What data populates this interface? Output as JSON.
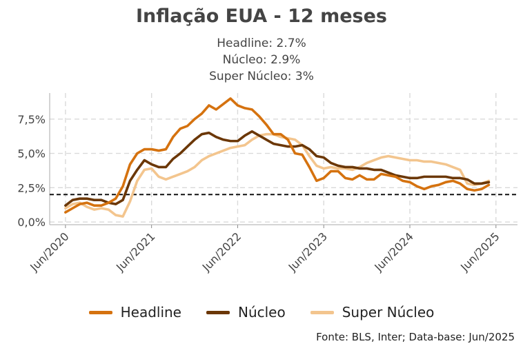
{
  "chart_data": {
    "type": "line",
    "title": "Inflação EUA - 12 meses",
    "subtitle_lines": [
      "Headline: 2.7%",
      "Núcleo: 2.9%",
      "Super Núcleo: 3%"
    ],
    "y_ticks": [
      "0,0%",
      "2,5%",
      "5,0%",
      "7,5%"
    ],
    "y_tick_values": [
      0,
      2.5,
      5,
      7.5
    ],
    "x_ticks": [
      "Jun/2020",
      "Jun/2021",
      "Jun/2022",
      "Jun/2023",
      "Jun/2024",
      "Jun/2025"
    ],
    "x_tick_months": [
      0,
      12,
      24,
      36,
      48,
      60
    ],
    "ylim": [
      -0.2,
      9.4
    ],
    "xlim": [
      -2.2,
      63
    ],
    "reference_line": 2.0,
    "grid": true,
    "legend_position": "bottom",
    "series": [
      {
        "name": "Headline",
        "color": "#d5720f",
        "values": [
          0.7,
          1.0,
          1.3,
          1.4,
          1.2,
          1.2,
          1.4,
          1.7,
          2.6,
          4.2,
          5.0,
          5.3,
          5.3,
          5.2,
          5.3,
          6.2,
          6.8,
          7.0,
          7.5,
          7.9,
          8.5,
          8.2,
          8.6,
          9.0,
          8.5,
          8.3,
          8.2,
          7.7,
          7.1,
          6.4,
          6.4,
          6.0,
          5.0,
          4.9,
          4.0,
          3.0,
          3.2,
          3.7,
          3.7,
          3.2,
          3.1,
          3.4,
          3.1,
          3.1,
          3.5,
          3.4,
          3.3,
          3.0,
          2.9,
          2.6,
          2.4,
          2.6,
          2.7,
          2.9,
          3.0,
          2.8,
          2.4,
          2.3,
          2.4,
          2.7
        ]
      },
      {
        "name": "Núcleo",
        "color": "#6b3706",
        "values": [
          1.2,
          1.6,
          1.7,
          1.7,
          1.6,
          1.6,
          1.4,
          1.3,
          1.6,
          3.0,
          3.8,
          4.5,
          4.2,
          4.0,
          4.0,
          4.6,
          5.0,
          5.5,
          6.0,
          6.4,
          6.5,
          6.2,
          6.0,
          5.9,
          5.9,
          6.3,
          6.6,
          6.3,
          6.0,
          5.7,
          5.6,
          5.5,
          5.5,
          5.6,
          5.3,
          4.8,
          4.7,
          4.3,
          4.1,
          4.0,
          4.0,
          3.9,
          3.9,
          3.8,
          3.8,
          3.6,
          3.4,
          3.3,
          3.2,
          3.2,
          3.3,
          3.3,
          3.3,
          3.3,
          3.2,
          3.2,
          3.1,
          2.8,
          2.8,
          2.9
        ]
      },
      {
        "name": "Super Núcleo",
        "color": "#f3c58e",
        "values": [
          1.0,
          1.3,
          1.4,
          1.1,
          0.9,
          1.0,
          0.9,
          0.5,
          0.4,
          1.5,
          3.0,
          3.8,
          3.9,
          3.3,
          3.1,
          3.3,
          3.5,
          3.7,
          4.0,
          4.5,
          4.8,
          5.0,
          5.2,
          5.4,
          5.5,
          5.6,
          6.0,
          6.3,
          6.4,
          6.4,
          6.2,
          6.1,
          6.0,
          5.6,
          4.8,
          4.1,
          3.9,
          4.0,
          3.9,
          3.9,
          3.8,
          4.0,
          4.3,
          4.5,
          4.7,
          4.8,
          4.7,
          4.6,
          4.5,
          4.5,
          4.4,
          4.4,
          4.3,
          4.2,
          4.0,
          3.8,
          2.8,
          2.7,
          2.8,
          3.0
        ]
      }
    ]
  },
  "legend": {
    "items": [
      "Headline",
      "Núcleo",
      "Super Núcleo"
    ]
  },
  "source": "Fonte: BLS, Inter; Data-base: Jun/2025"
}
